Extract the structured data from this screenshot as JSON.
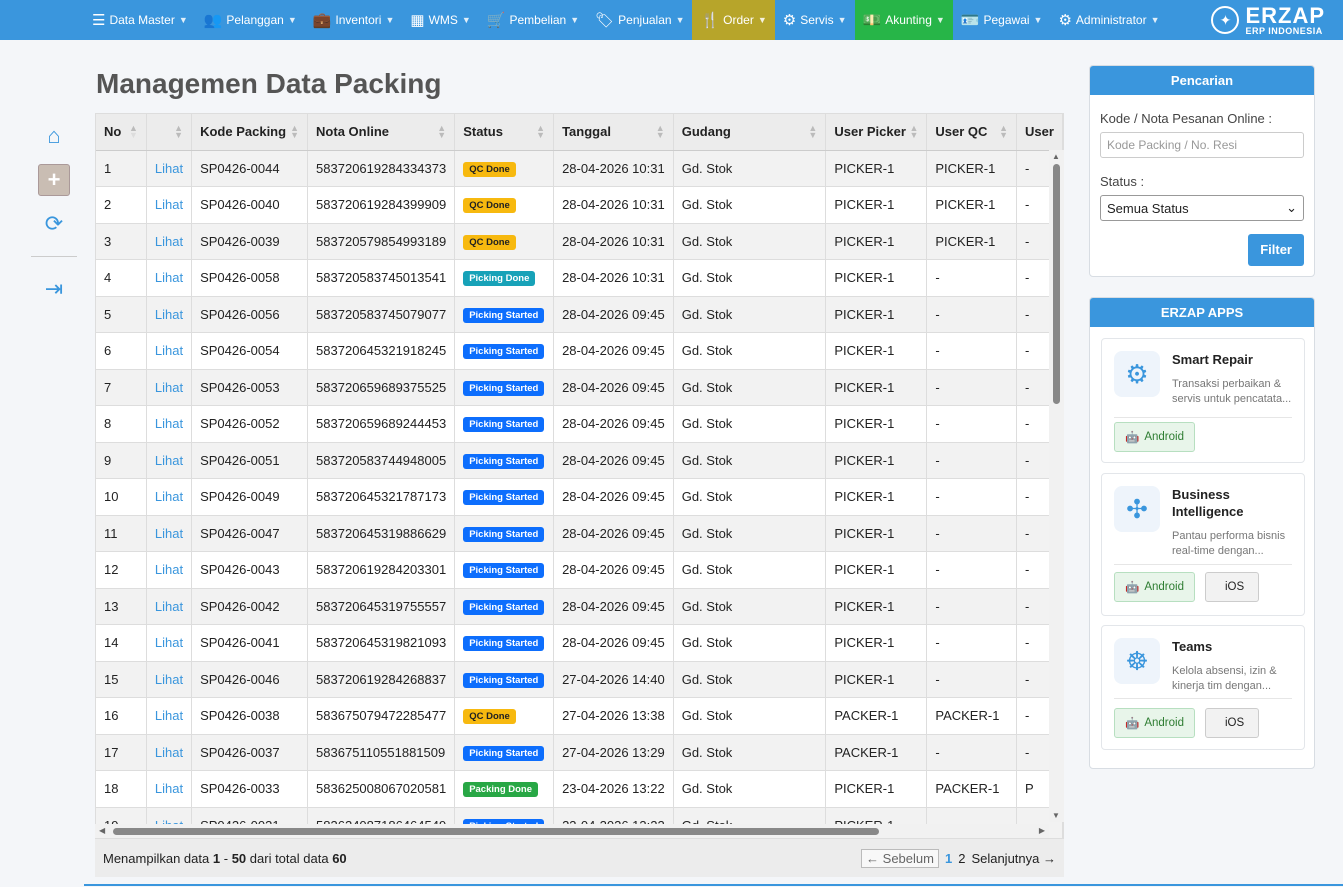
{
  "nav": {
    "items": [
      {
        "label": "Data Master",
        "icon": "list-icon",
        "glyph": "☰"
      },
      {
        "label": "Pelanggan",
        "icon": "users-icon",
        "glyph": "👥"
      },
      {
        "label": "Inventori",
        "icon": "briefcase-icon",
        "glyph": "💼"
      },
      {
        "label": "WMS",
        "icon": "building-icon",
        "glyph": "▦"
      },
      {
        "label": "Pembelian",
        "icon": "cart-icon",
        "glyph": "🛒"
      },
      {
        "label": "Penjualan",
        "icon": "tag-icon",
        "glyph": "🏷"
      },
      {
        "label": "Order",
        "icon": "utensils-icon",
        "glyph": "🍴"
      },
      {
        "label": "Servis",
        "icon": "cogs-icon",
        "glyph": "⚙"
      },
      {
        "label": "Akunting",
        "icon": "money-icon",
        "glyph": "💵"
      },
      {
        "label": "Pegawai",
        "icon": "id-card-icon",
        "glyph": "🪪"
      },
      {
        "label": "Administrator",
        "icon": "gear-icon",
        "glyph": "⚙"
      }
    ],
    "order_color": "#b7a52a",
    "akunting_color": "#27b548",
    "accent": "#3a96dd"
  },
  "brand": {
    "name": "ERZAP",
    "sub": "ERP INDONESIA"
  },
  "page": {
    "title": "Managemen Data Packing"
  },
  "table": {
    "headers": [
      "No",
      "",
      "Kode Packing",
      "Nota Online",
      "Status",
      "Tanggal",
      "Gudang",
      "User Picker",
      "User QC",
      "User"
    ],
    "rows": [
      [
        "1",
        "Lihat",
        "SP0426-0044",
        "583720619284334373",
        "QC Done",
        "28-04-2026 10:31",
        "Gd. Stok",
        "PICKER-1",
        "PICKER-1",
        "-"
      ],
      [
        "2",
        "Lihat",
        "SP0426-0040",
        "583720619284399909",
        "QC Done",
        "28-04-2026 10:31",
        "Gd. Stok",
        "PICKER-1",
        "PICKER-1",
        "-"
      ],
      [
        "3",
        "Lihat",
        "SP0426-0039",
        "583720579854993189",
        "QC Done",
        "28-04-2026 10:31",
        "Gd. Stok",
        "PICKER-1",
        "PICKER-1",
        "-"
      ],
      [
        "4",
        "Lihat",
        "SP0426-0058",
        "583720583745013541",
        "Picking Done",
        "28-04-2026 10:31",
        "Gd. Stok",
        "PICKER-1",
        "-",
        "-"
      ],
      [
        "5",
        "Lihat",
        "SP0426-0056",
        "583720583745079077",
        "Picking Started",
        "28-04-2026 09:45",
        "Gd. Stok",
        "PICKER-1",
        "-",
        "-"
      ],
      [
        "6",
        "Lihat",
        "SP0426-0054",
        "583720645321918245",
        "Picking Started",
        "28-04-2026 09:45",
        "Gd. Stok",
        "PICKER-1",
        "-",
        "-"
      ],
      [
        "7",
        "Lihat",
        "SP0426-0053",
        "583720659689375525",
        "Picking Started",
        "28-04-2026 09:45",
        "Gd. Stok",
        "PICKER-1",
        "-",
        "-"
      ],
      [
        "8",
        "Lihat",
        "SP0426-0052",
        "583720659689244453",
        "Picking Started",
        "28-04-2026 09:45",
        "Gd. Stok",
        "PICKER-1",
        "-",
        "-"
      ],
      [
        "9",
        "Lihat",
        "SP0426-0051",
        "583720583744948005",
        "Picking Started",
        "28-04-2026 09:45",
        "Gd. Stok",
        "PICKER-1",
        "-",
        "-"
      ],
      [
        "10",
        "Lihat",
        "SP0426-0049",
        "583720645321787173",
        "Picking Started",
        "28-04-2026 09:45",
        "Gd. Stok",
        "PICKER-1",
        "-",
        "-"
      ],
      [
        "11",
        "Lihat",
        "SP0426-0047",
        "583720645319886629",
        "Picking Started",
        "28-04-2026 09:45",
        "Gd. Stok",
        "PICKER-1",
        "-",
        "-"
      ],
      [
        "12",
        "Lihat",
        "SP0426-0043",
        "583720619284203301",
        "Picking Started",
        "28-04-2026 09:45",
        "Gd. Stok",
        "PICKER-1",
        "-",
        "-"
      ],
      [
        "13",
        "Lihat",
        "SP0426-0042",
        "583720645319755557",
        "Picking Started",
        "28-04-2026 09:45",
        "Gd. Stok",
        "PICKER-1",
        "-",
        "-"
      ],
      [
        "14",
        "Lihat",
        "SP0426-0041",
        "583720645319821093",
        "Picking Started",
        "28-04-2026 09:45",
        "Gd. Stok",
        "PICKER-1",
        "-",
        "-"
      ],
      [
        "15",
        "Lihat",
        "SP0426-0046",
        "583720619284268837",
        "Picking Started",
        "27-04-2026 14:40",
        "Gd. Stok",
        "PICKER-1",
        "-",
        "-"
      ],
      [
        "16",
        "Lihat",
        "SP0426-0038",
        "583675079472285477",
        "QC Done",
        "27-04-2026 13:38",
        "Gd. Stok",
        "PACKER-1",
        "PACKER-1",
        "-"
      ],
      [
        "17",
        "Lihat",
        "SP0426-0037",
        "583675110551881509",
        "Picking Started",
        "27-04-2026 13:29",
        "Gd. Stok",
        "PACKER-1",
        "-",
        "-"
      ],
      [
        "18",
        "Lihat",
        "SP0426-0033",
        "583625008067020581",
        "Packing Done",
        "23-04-2026 13:22",
        "Gd. Stok",
        "PICKER-1",
        "PACKER-1",
        "P"
      ]
    ],
    "status_colors": {
      "QC Done": "#f7b90f",
      "Picking Done": "#17a2b8",
      "Picking Started": "#0d6efd",
      "Packing Done": "#28a745"
    }
  },
  "footer": {
    "prefix": "Menampilkan data",
    "from": "1",
    "dash": "-",
    "to": "50",
    "mid": "dari total data",
    "total": "60",
    "prev": "← Sebelum",
    "page1": "1",
    "page2": "2",
    "next": "Selanjutnya →"
  },
  "search": {
    "title": "Pencarian",
    "kode_label": "Kode / Nota Pesanan Online :",
    "kode_placeholder": "Kode Packing / No. Resi",
    "status_label": "Status :",
    "status_value": "Semua Status",
    "filter_label": "Filter"
  },
  "apps": {
    "title": "ERZAP APPS",
    "items": [
      {
        "name": "Smart Repair",
        "desc": "Transaksi perbaikan & servis untuk pencatata...",
        "icon": "smart-repair-icon",
        "android": "Android"
      },
      {
        "name": "Business Intelligence",
        "desc": "Pantau performa bisnis real-time dengan...",
        "icon": "business-intelligence-icon",
        "android": "Android",
        "ios": "iOS"
      },
      {
        "name": "Teams",
        "desc": "Kelola absensi, izin & kinerja tim dengan...",
        "icon": "teams-icon",
        "android": "Android",
        "ios": "iOS"
      }
    ]
  },
  "sidebar": {
    "icons": [
      "home-icon",
      "add-icon",
      "refresh-icon",
      "logout-icon"
    ]
  }
}
